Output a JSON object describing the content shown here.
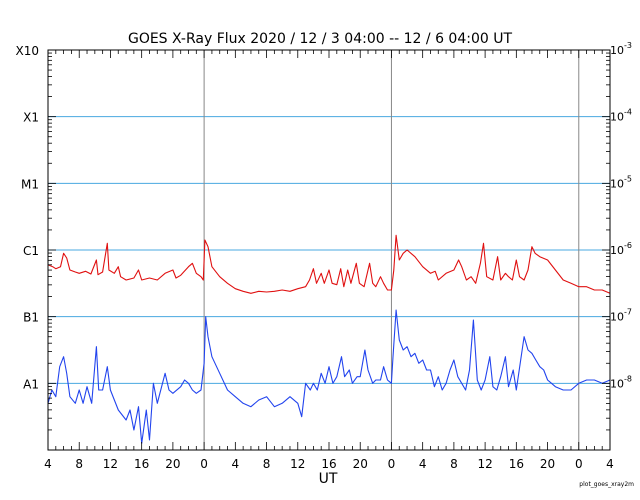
{
  "chart_data": {
    "type": "line",
    "title": "GOES X-Ray Flux   2020 / 12 /  3   04:00 -- 12 /  6   04:00   UT",
    "xlabel": "UT",
    "footer_credit": "plot_goes_xray2m",
    "x_range_hours": [
      0,
      72
    ],
    "x_tick_labels": [
      "4",
      "8",
      "12",
      "16",
      "20",
      "0",
      "4",
      "8",
      "12",
      "16",
      "20",
      "0",
      "4",
      "8",
      "12",
      "16",
      "20",
      "0",
      "4"
    ],
    "day_boundaries_hours": [
      20,
      44,
      68
    ],
    "y_scale": "log",
    "y_range_log10": [
      -9,
      -3
    ],
    "y_left_ticks": [
      {
        "label": "X10",
        "log10": -3
      },
      {
        "label": "X1",
        "log10": -4
      },
      {
        "label": "M1",
        "log10": -5
      },
      {
        "label": "C1",
        "log10": -6
      },
      {
        "label": "B1",
        "log10": -7
      },
      {
        "label": "A1",
        "log10": -8
      }
    ],
    "y_right_ticks": [
      {
        "base": "10",
        "exp": "-3",
        "log10": -3
      },
      {
        "base": "10",
        "exp": "-4",
        "log10": -4
      },
      {
        "base": "10",
        "exp": "-5",
        "log10": -5
      },
      {
        "base": "10",
        "exp": "-6",
        "log10": -6
      },
      {
        "base": "10",
        "exp": "-7",
        "log10": -7
      },
      {
        "base": "10",
        "exp": "-8",
        "log10": -8
      }
    ],
    "horizontal_grid_log10": [
      -4,
      -5,
      -6,
      -7,
      -8
    ],
    "grid_color": "#4aa8e0",
    "day_line_color": "#888888",
    "series": [
      {
        "color": "#e01010",
        "points": [
          [
            0,
            -6.22
          ],
          [
            0.6,
            -6.25
          ],
          [
            1,
            -6.28
          ],
          [
            1.6,
            -6.25
          ],
          [
            2.0,
            -6.05
          ],
          [
            2.4,
            -6.12
          ],
          [
            2.8,
            -6.3
          ],
          [
            3.5,
            -6.33
          ],
          [
            4,
            -6.35
          ],
          [
            4.8,
            -6.32
          ],
          [
            5.5,
            -6.36
          ],
          [
            6.2,
            -6.15
          ],
          [
            6.4,
            -6.37
          ],
          [
            7.0,
            -6.33
          ],
          [
            7.6,
            -5.9
          ],
          [
            7.8,
            -6.3
          ],
          [
            8.5,
            -6.35
          ],
          [
            9,
            -6.25
          ],
          [
            9.3,
            -6.4
          ],
          [
            10,
            -6.45
          ],
          [
            11,
            -6.42
          ],
          [
            11.6,
            -6.3
          ],
          [
            12,
            -6.45
          ],
          [
            13,
            -6.42
          ],
          [
            14,
            -6.45
          ],
          [
            15,
            -6.35
          ],
          [
            16,
            -6.3
          ],
          [
            16.4,
            -6.42
          ],
          [
            17,
            -6.38
          ],
          [
            18,
            -6.25
          ],
          [
            18.5,
            -6.2
          ],
          [
            19,
            -6.35
          ],
          [
            19.6,
            -6.4
          ],
          [
            19.9,
            -6.45
          ],
          [
            20.1,
            -5.85
          ],
          [
            20.5,
            -5.95
          ],
          [
            21,
            -6.25
          ],
          [
            22,
            -6.4
          ],
          [
            23,
            -6.5
          ],
          [
            24,
            -6.58
          ],
          [
            25,
            -6.62
          ],
          [
            26,
            -6.65
          ],
          [
            27,
            -6.62
          ],
          [
            28,
            -6.63
          ],
          [
            29,
            -6.62
          ],
          [
            30,
            -6.6
          ],
          [
            31,
            -6.62
          ],
          [
            32,
            -6.58
          ],
          [
            33,
            -6.55
          ],
          [
            33.5,
            -6.45
          ],
          [
            34,
            -6.28
          ],
          [
            34.4,
            -6.5
          ],
          [
            35,
            -6.35
          ],
          [
            35.4,
            -6.5
          ],
          [
            36,
            -6.3
          ],
          [
            36.4,
            -6.5
          ],
          [
            37,
            -6.52
          ],
          [
            37.5,
            -6.28
          ],
          [
            37.9,
            -6.55
          ],
          [
            38.4,
            -6.3
          ],
          [
            38.8,
            -6.5
          ],
          [
            39.5,
            -6.2
          ],
          [
            39.9,
            -6.5
          ],
          [
            40.5,
            -6.55
          ],
          [
            41.2,
            -6.2
          ],
          [
            41.6,
            -6.5
          ],
          [
            42,
            -6.55
          ],
          [
            42.6,
            -6.4
          ],
          [
            43,
            -6.5
          ],
          [
            43.5,
            -6.6
          ],
          [
            44,
            -6.6
          ],
          [
            44.3,
            -6.3
          ],
          [
            44.6,
            -5.78
          ],
          [
            45,
            -6.15
          ],
          [
            45.5,
            -6.05
          ],
          [
            46,
            -6.0
          ],
          [
            47,
            -6.1
          ],
          [
            48,
            -6.25
          ],
          [
            49,
            -6.35
          ],
          [
            49.6,
            -6.32
          ],
          [
            50,
            -6.45
          ],
          [
            51,
            -6.35
          ],
          [
            52,
            -6.3
          ],
          [
            52.6,
            -6.15
          ],
          [
            53,
            -6.25
          ],
          [
            53.6,
            -6.45
          ],
          [
            54.2,
            -6.4
          ],
          [
            54.8,
            -6.5
          ],
          [
            55.4,
            -6.2
          ],
          [
            55.8,
            -5.9
          ],
          [
            56.2,
            -6.4
          ],
          [
            57,
            -6.45
          ],
          [
            57.6,
            -6.1
          ],
          [
            58,
            -6.45
          ],
          [
            58.6,
            -6.35
          ],
          [
            59,
            -6.4
          ],
          [
            59.5,
            -6.45
          ],
          [
            60,
            -6.15
          ],
          [
            60.4,
            -6.4
          ],
          [
            61,
            -6.45
          ],
          [
            61.5,
            -6.3
          ],
          [
            62,
            -5.95
          ],
          [
            62.4,
            -6.05
          ],
          [
            63,
            -6.1
          ],
          [
            64,
            -6.15
          ],
          [
            65,
            -6.3
          ],
          [
            66,
            -6.45
          ],
          [
            67,
            -6.5
          ],
          [
            68,
            -6.55
          ],
          [
            69,
            -6.55
          ],
          [
            70,
            -6.6
          ],
          [
            71,
            -6.6
          ],
          [
            72,
            -6.65
          ]
        ]
      },
      {
        "color": "#2244ee",
        "points": [
          [
            0,
            -8.3
          ],
          [
            0.5,
            -8.1
          ],
          [
            1,
            -8.2
          ],
          [
            1.5,
            -7.75
          ],
          [
            2,
            -7.6
          ],
          [
            2.4,
            -7.85
          ],
          [
            2.8,
            -8.2
          ],
          [
            3.5,
            -8.3
          ],
          [
            4,
            -8.1
          ],
          [
            4.5,
            -8.3
          ],
          [
            5,
            -8.05
          ],
          [
            5.6,
            -8.3
          ],
          [
            6.2,
            -7.45
          ],
          [
            6.5,
            -8.1
          ],
          [
            7,
            -8.1
          ],
          [
            7.6,
            -7.75
          ],
          [
            8,
            -8.1
          ],
          [
            9,
            -8.4
          ],
          [
            10,
            -8.55
          ],
          [
            10.5,
            -8.4
          ],
          [
            11,
            -8.7
          ],
          [
            11.6,
            -8.35
          ],
          [
            12,
            -8.9
          ],
          [
            12.6,
            -8.4
          ],
          [
            13,
            -8.85
          ],
          [
            13.5,
            -8.0
          ],
          [
            14,
            -8.3
          ],
          [
            15,
            -7.85
          ],
          [
            15.5,
            -8.1
          ],
          [
            16,
            -8.15
          ],
          [
            17,
            -8.05
          ],
          [
            17.5,
            -7.95
          ],
          [
            18,
            -8.0
          ],
          [
            18.5,
            -8.1
          ],
          [
            19,
            -8.15
          ],
          [
            19.6,
            -8.1
          ],
          [
            20,
            -7.7
          ],
          [
            20.2,
            -7.0
          ],
          [
            20.5,
            -7.3
          ],
          [
            21,
            -7.6
          ],
          [
            22,
            -7.85
          ],
          [
            23,
            -8.1
          ],
          [
            24,
            -8.2
          ],
          [
            25,
            -8.3
          ],
          [
            26,
            -8.35
          ],
          [
            27,
            -8.25
          ],
          [
            28,
            -8.2
          ],
          [
            29,
            -8.35
          ],
          [
            30,
            -8.3
          ],
          [
            31,
            -8.2
          ],
          [
            32,
            -8.3
          ],
          [
            32.5,
            -8.5
          ],
          [
            33,
            -8.0
          ],
          [
            33.6,
            -8.1
          ],
          [
            34,
            -8.0
          ],
          [
            34.5,
            -8.1
          ],
          [
            35,
            -7.85
          ],
          [
            35.5,
            -8.0
          ],
          [
            36,
            -7.75
          ],
          [
            36.5,
            -8.0
          ],
          [
            37,
            -7.9
          ],
          [
            37.6,
            -7.6
          ],
          [
            38,
            -7.9
          ],
          [
            38.6,
            -7.8
          ],
          [
            39,
            -8.0
          ],
          [
            39.6,
            -7.9
          ],
          [
            40,
            -7.9
          ],
          [
            40.6,
            -7.5
          ],
          [
            41,
            -7.8
          ],
          [
            41.6,
            -8.0
          ],
          [
            42,
            -7.95
          ],
          [
            42.6,
            -7.95
          ],
          [
            43,
            -7.75
          ],
          [
            43.5,
            -7.95
          ],
          [
            44,
            -8.0
          ],
          [
            44.2,
            -7.6
          ],
          [
            44.6,
            -6.9
          ],
          [
            45,
            -7.35
          ],
          [
            45.5,
            -7.5
          ],
          [
            46,
            -7.45
          ],
          [
            46.5,
            -7.6
          ],
          [
            47,
            -7.55
          ],
          [
            47.5,
            -7.7
          ],
          [
            48,
            -7.65
          ],
          [
            48.5,
            -7.8
          ],
          [
            49,
            -7.8
          ],
          [
            49.5,
            -8.05
          ],
          [
            50,
            -7.9
          ],
          [
            50.5,
            -8.1
          ],
          [
            51,
            -8.0
          ],
          [
            51.5,
            -7.8
          ],
          [
            52,
            -7.65
          ],
          [
            52.5,
            -7.9
          ],
          [
            53,
            -8.0
          ],
          [
            53.5,
            -8.1
          ],
          [
            54,
            -7.8
          ],
          [
            54.5,
            -7.05
          ],
          [
            55,
            -7.95
          ],
          [
            55.5,
            -8.1
          ],
          [
            56,
            -7.95
          ],
          [
            56.6,
            -7.6
          ],
          [
            57,
            -8.05
          ],
          [
            57.5,
            -8.1
          ],
          [
            58,
            -7.9
          ],
          [
            58.6,
            -7.6
          ],
          [
            59,
            -8.05
          ],
          [
            59.6,
            -7.8
          ],
          [
            60,
            -8.1
          ],
          [
            60.5,
            -7.7
          ],
          [
            61,
            -7.3
          ],
          [
            61.5,
            -7.5
          ],
          [
            62,
            -7.55
          ],
          [
            62.5,
            -7.65
          ],
          [
            63,
            -7.75
          ],
          [
            63.5,
            -7.8
          ],
          [
            64,
            -7.95
          ],
          [
            64.5,
            -8.0
          ],
          [
            65,
            -8.05
          ],
          [
            66,
            -8.1
          ],
          [
            67,
            -8.1
          ],
          [
            68,
            -8.0
          ],
          [
            69,
            -7.95
          ],
          [
            70,
            -7.95
          ],
          [
            71,
            -8.0
          ],
          [
            72,
            -7.95
          ]
        ]
      }
    ]
  }
}
